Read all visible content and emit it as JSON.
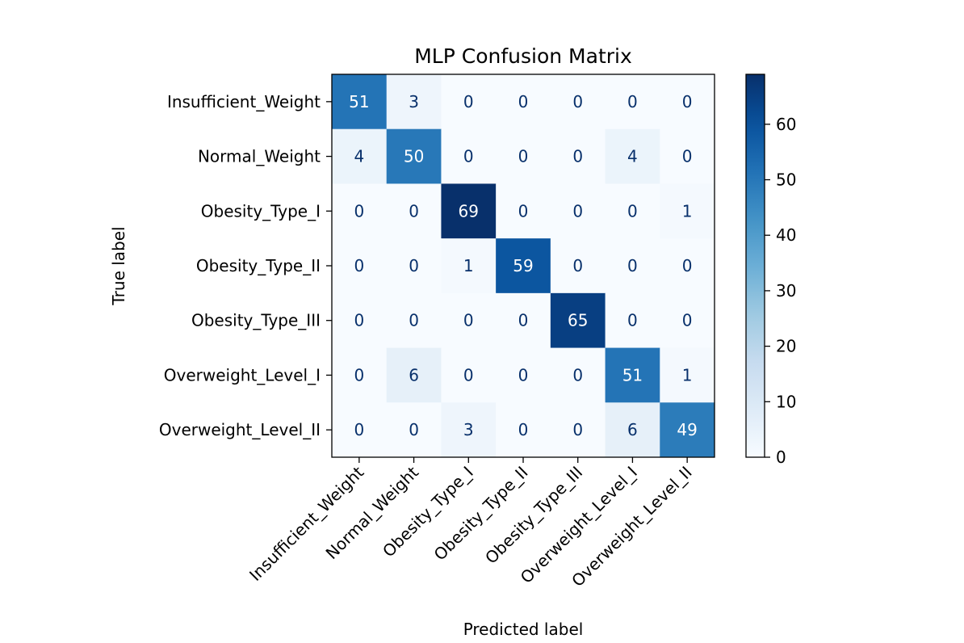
{
  "chart_data": {
    "type": "heatmap",
    "title": "MLP Confusion Matrix",
    "xlabel": "Predicted label",
    "ylabel": "True label",
    "row_labels": [
      "Insufficient_Weight",
      "Normal_Weight",
      "Obesity_Type_I",
      "Obesity_Type_II",
      "Obesity_Type_III",
      "Overweight_Level_I",
      "Overweight_Level_II"
    ],
    "col_labels": [
      "Insufficient_Weight",
      "Normal_Weight",
      "Obesity_Type_I",
      "Obesity_Type_II",
      "Obesity_Type_III",
      "Overweight_Level_I",
      "Overweight_Level_II"
    ],
    "values": [
      [
        51,
        3,
        0,
        0,
        0,
        0,
        0
      ],
      [
        4,
        50,
        0,
        0,
        0,
        4,
        0
      ],
      [
        0,
        0,
        69,
        0,
        0,
        0,
        1
      ],
      [
        0,
        0,
        1,
        59,
        0,
        0,
        0
      ],
      [
        0,
        0,
        0,
        0,
        65,
        0,
        0
      ],
      [
        0,
        6,
        0,
        0,
        0,
        51,
        1
      ],
      [
        0,
        0,
        3,
        0,
        0,
        6,
        49
      ]
    ],
    "colormap": "Blues",
    "colorbar": {
      "min": 0,
      "max": 69,
      "ticks": [
        0,
        10,
        20,
        30,
        40,
        50,
        60
      ]
    },
    "colors": {
      "text_dark": "#08306b",
      "text_light": "#ffffff",
      "low": "#f7fbff",
      "high": "#08306b"
    }
  }
}
